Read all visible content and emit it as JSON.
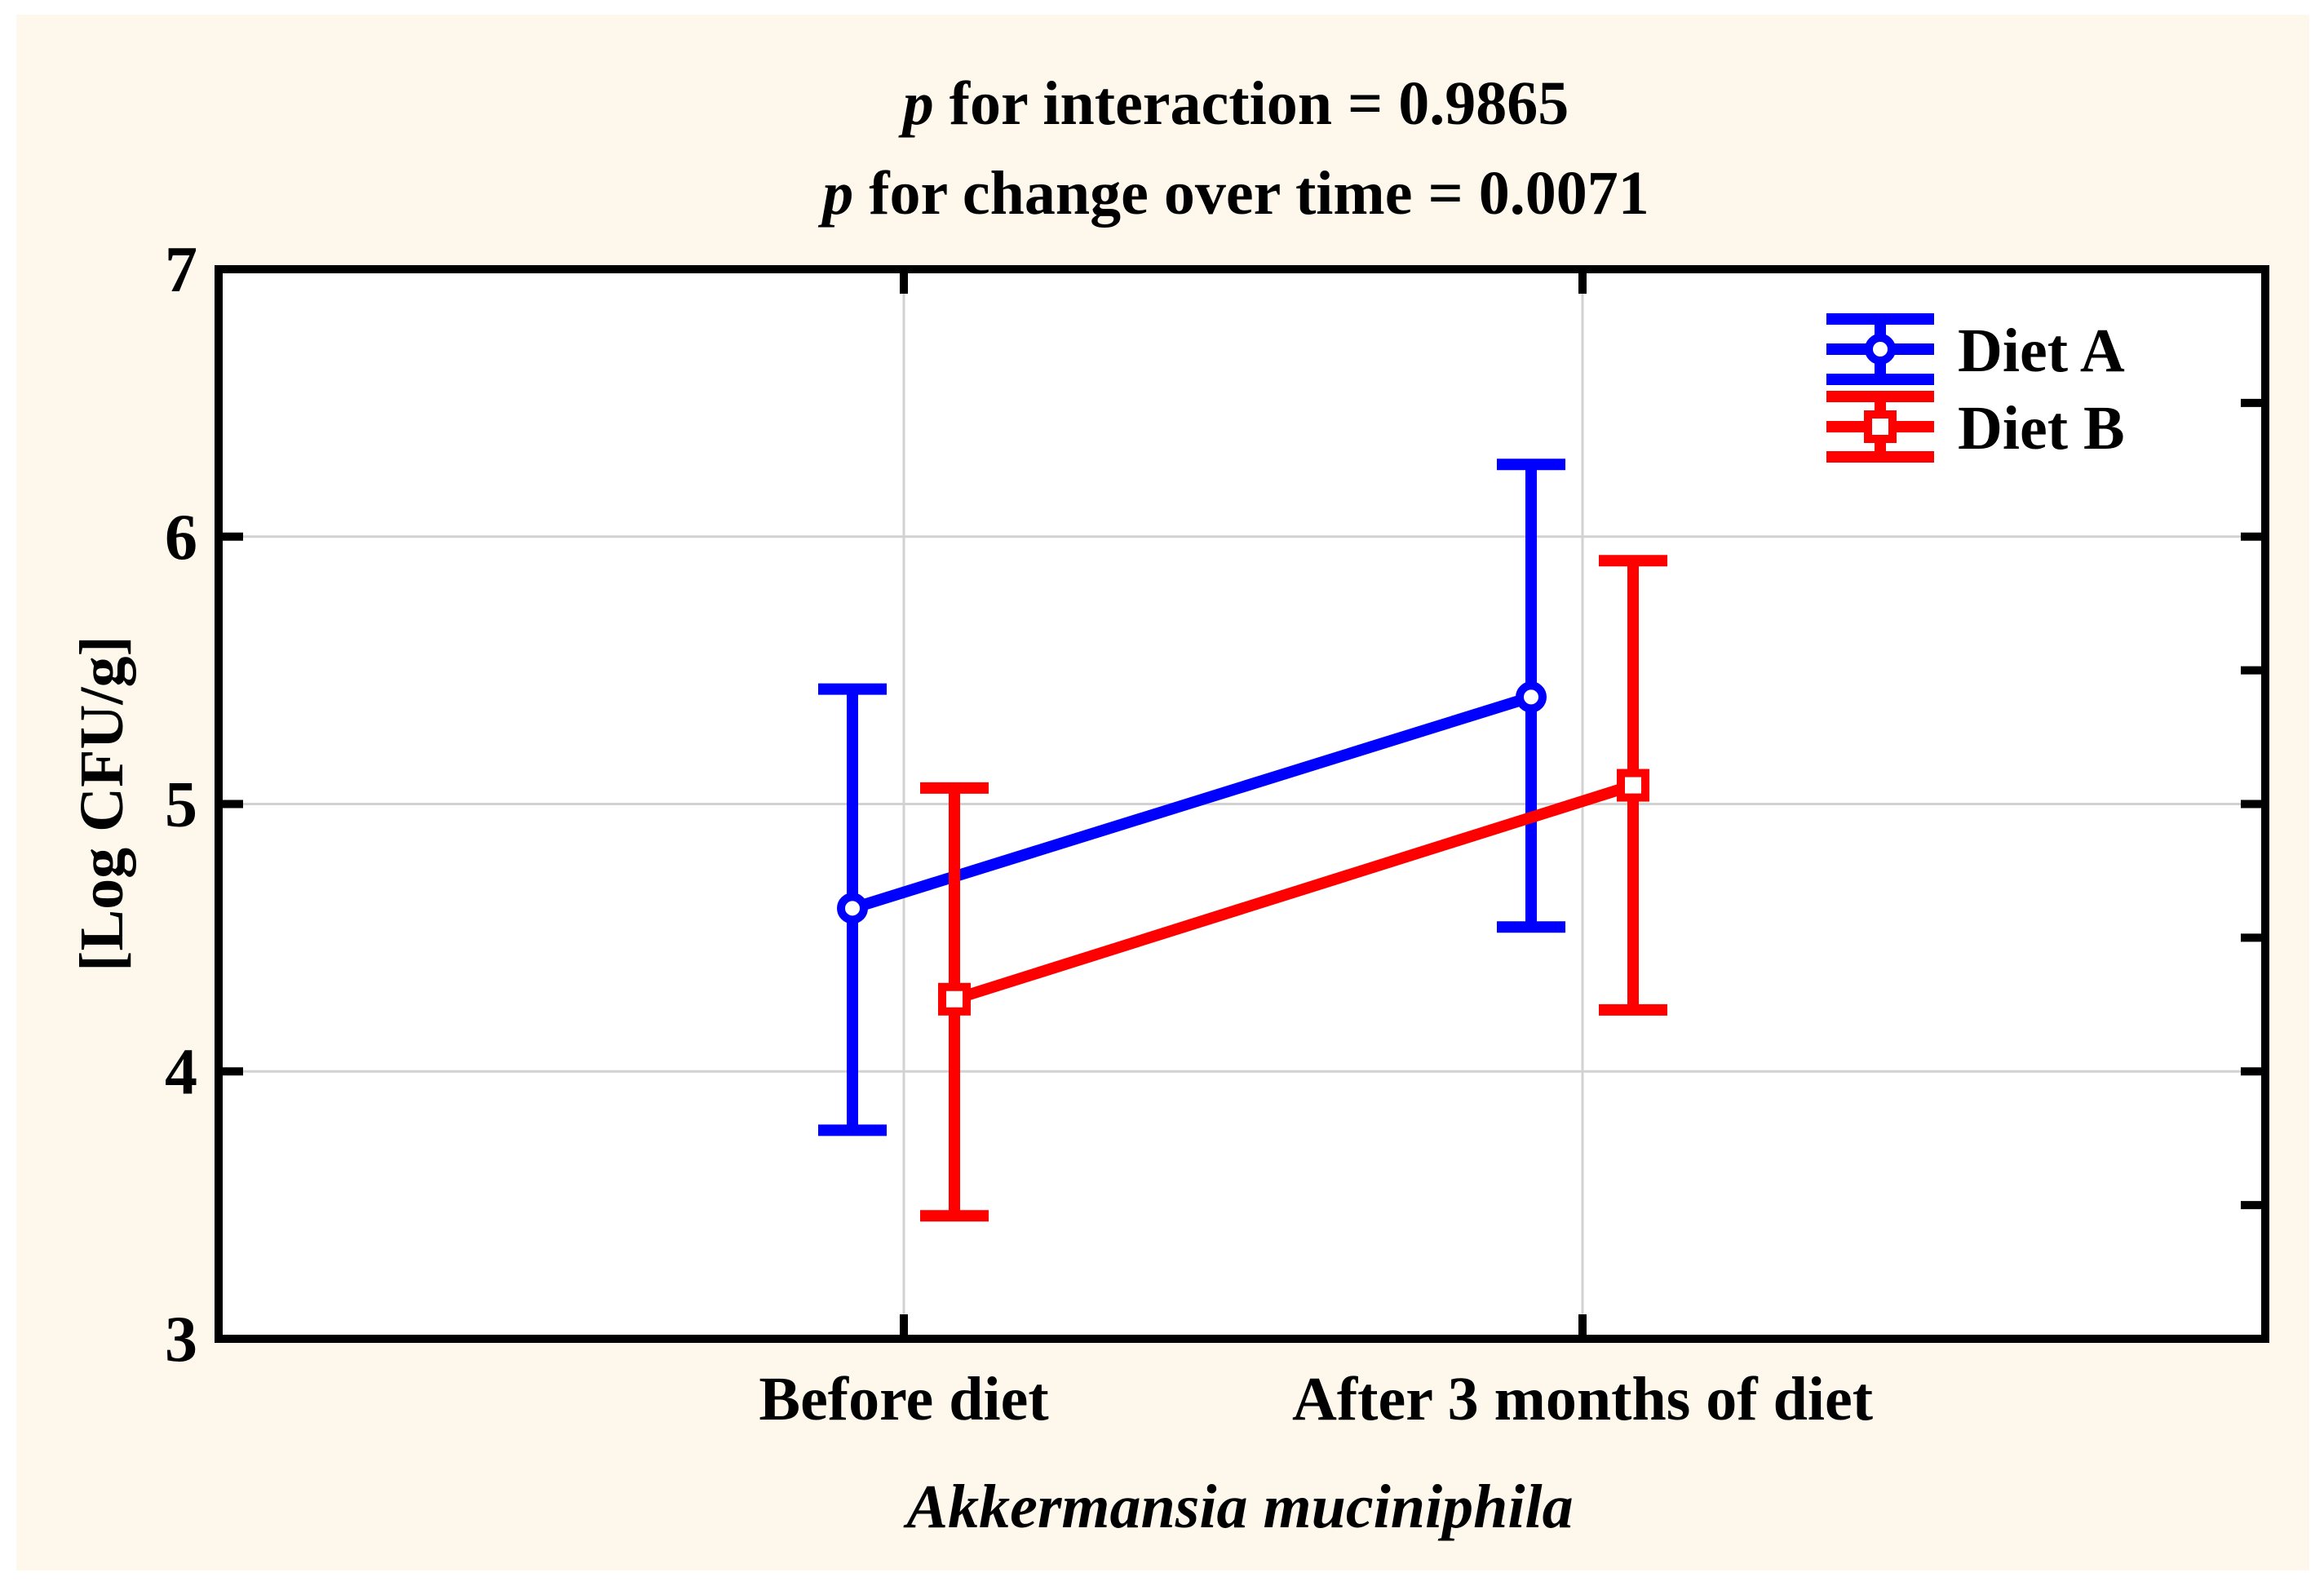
{
  "figure": {
    "background_color": "#FDF8EB",
    "title_line1": {
      "prefix": "p",
      "rest": " for interaction = 0.9865"
    },
    "title_line2": {
      "prefix": "p",
      "rest": " for change over time = 0.0071"
    }
  },
  "chart_data": {
    "type": "line",
    "title": "p for interaction = 0.9865; p for change over time = 0.0071",
    "categories": [
      "Before diet",
      "After 3 months of diet"
    ],
    "series": [
      {
        "name": "Diet A",
        "color": "#0000FF",
        "marker": "circle",
        "means": [
          4.61,
          5.4
        ],
        "err_low": [
          3.78,
          4.54
        ],
        "err_high": [
          5.43,
          6.27
        ]
      },
      {
        "name": "Diet B",
        "color": "#FF0000",
        "marker": "square",
        "means": [
          4.27,
          5.07
        ],
        "err_low": [
          3.46,
          4.23
        ],
        "err_high": [
          5.06,
          5.91
        ]
      }
    ],
    "xlabel": "Akkermansia muciniphila",
    "ylabel": "[Log CFU/g]",
    "ylim": [
      3,
      7
    ],
    "yticks": [
      3,
      4,
      5,
      6,
      7
    ],
    "ytick_labels": [
      "3",
      "4",
      "5",
      "6",
      "7"
    ],
    "right_axis_ticks": [
      3.5,
      4,
      4.5,
      5,
      5.5,
      6,
      6.5
    ],
    "grid_values": [
      4,
      5,
      6
    ],
    "grid_color": "#D2D2D2",
    "legend_position": "top-right",
    "plot_background": "#FFFFFF"
  }
}
